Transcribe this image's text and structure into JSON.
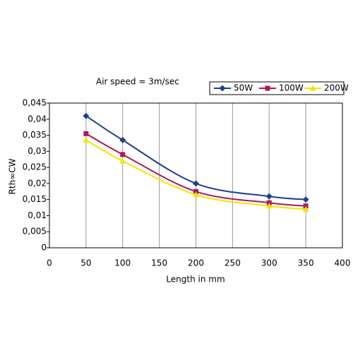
{
  "chart_data": {
    "type": "line",
    "title": "Air speed = 3m/sec",
    "x_label": "Length in mm",
    "y_label": "Rth∞CW",
    "x": [
      50,
      100,
      200,
      300,
      350
    ],
    "series": [
      {
        "name": "50W",
        "color": "#1f3f8f",
        "marker": "diamond",
        "values": [
          0.041,
          0.0335,
          0.02,
          0.016,
          0.015
        ]
      },
      {
        "name": "100W",
        "color": "#b0185a",
        "marker": "square",
        "values": [
          0.0355,
          0.029,
          0.0175,
          0.014,
          0.013
        ]
      },
      {
        "name": "200W",
        "color": "#f2e600",
        "marker": "triangle",
        "values": [
          0.0335,
          0.027,
          0.0165,
          0.013,
          0.012
        ]
      }
    ],
    "xlim": [
      0,
      400
    ],
    "xticks": [
      0,
      50,
      100,
      150,
      200,
      250,
      300,
      350,
      400
    ],
    "ylim": [
      0,
      0.045
    ],
    "yticks": [
      0,
      {
        "value": 0.005,
        "label": "0,005"
      },
      {
        "value": 0.01,
        "label": "0,01"
      },
      {
        "value": 0.015,
        "label": "0,015"
      },
      {
        "value": 0.02,
        "label": "0,02"
      },
      {
        "value": 0.025,
        "label": "0,025"
      },
      {
        "value": 0.03,
        "label": "0,03"
      },
      {
        "value": 0.035,
        "label": "0,035"
      },
      {
        "value": 0.04,
        "label": "0,04"
      },
      {
        "value": 0.045,
        "label": "0,045"
      }
    ],
    "grid": "x",
    "legend": "top-right"
  }
}
